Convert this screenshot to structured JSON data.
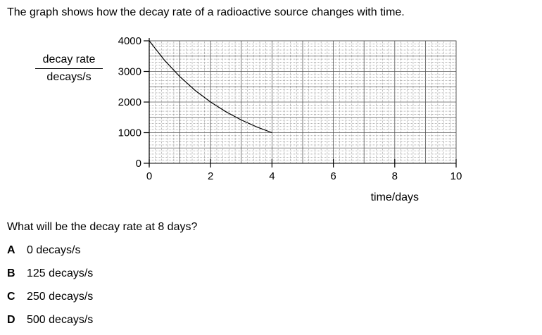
{
  "intro": "The graph shows how the decay rate of a radioactive source changes with time.",
  "question": "What will be the decay rate at 8 days?",
  "options": [
    {
      "letter": "A",
      "text": "0 decays/s"
    },
    {
      "letter": "B",
      "text": "125 decays/s"
    },
    {
      "letter": "C",
      "text": "250 decays/s"
    },
    {
      "letter": "D",
      "text": "500 decays/s"
    }
  ],
  "chart_data": {
    "type": "line",
    "ylabel_top": "decay rate",
    "ylabel_bottom": "decays/s",
    "xlabel": "time/days",
    "xlim": [
      0,
      10
    ],
    "ylim": [
      0,
      4000
    ],
    "x_ticks": [
      0,
      2,
      4,
      6,
      8,
      10
    ],
    "y_ticks": [
      0,
      1000,
      2000,
      3000,
      4000
    ],
    "x_tick_labels": [
      "0",
      "2",
      "4",
      "6",
      "8",
      "10"
    ],
    "y_tick_labels": [
      "0",
      "1000",
      "2000",
      "3000",
      "4000"
    ],
    "grid": true,
    "series": [
      {
        "x": [
          0,
          0.5,
          1,
          1.5,
          2,
          2.5,
          3,
          3.5,
          4
        ],
        "y": [
          4000,
          3364,
          2828,
          2378,
          2000,
          1682,
          1414,
          1189,
          1000
        ]
      }
    ],
    "series_color": "#000000"
  }
}
